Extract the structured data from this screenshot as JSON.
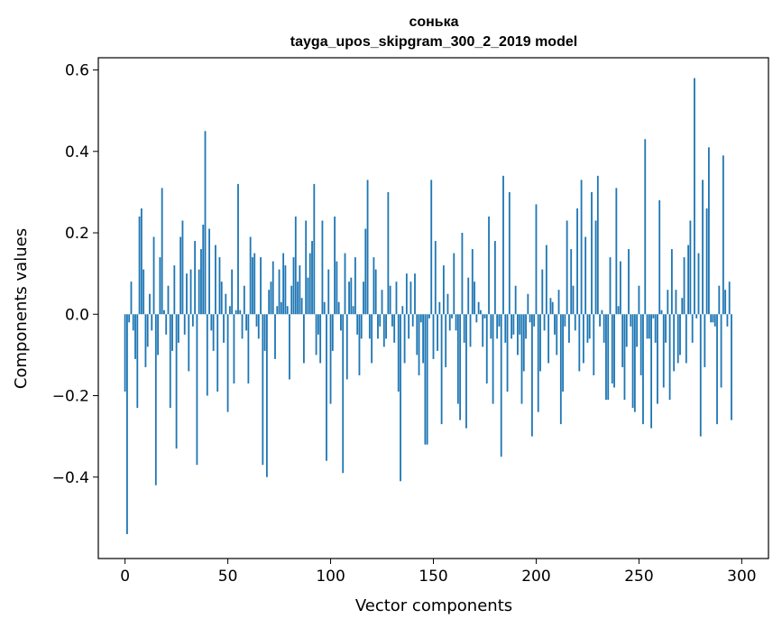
{
  "chart_data": {
    "type": "bar",
    "title": "сонька",
    "subtitle": "tayga_upos_skipgram_300_2_2019 model",
    "xlabel": "Vector components",
    "ylabel": "Components values",
    "xlim": [
      -13,
      313
    ],
    "ylim": [
      -0.6,
      0.63
    ],
    "xticks": [
      0,
      50,
      100,
      150,
      200,
      250,
      300
    ],
    "yticks": [
      -0.4,
      -0.2,
      0.0,
      0.2,
      0.4,
      0.6
    ],
    "ytick_labels": [
      "−0.4",
      "−0.2",
      "0.0",
      "0.2",
      "0.4",
      "0.6"
    ],
    "color": "#1f77b4",
    "values": [
      -0.19,
      -0.54,
      -0.02,
      0.08,
      -0.04,
      -0.11,
      -0.23,
      0.24,
      0.26,
      0.11,
      -0.13,
      -0.08,
      0.05,
      -0.04,
      0.19,
      -0.42,
      -0.1,
      0.14,
      0.31,
      0.01,
      -0.05,
      0.07,
      -0.23,
      -0.09,
      0.12,
      -0.33,
      -0.07,
      0.19,
      0.23,
      -0.05,
      0.1,
      -0.14,
      0.11,
      -0.03,
      0.18,
      -0.37,
      0.11,
      0.16,
      0.22,
      0.45,
      -0.2,
      0.21,
      -0.04,
      -0.09,
      0.17,
      -0.19,
      0.14,
      0.08,
      -0.07,
      0.05,
      -0.24,
      0.02,
      0.11,
      -0.17,
      0.01,
      0.32,
      0.01,
      -0.06,
      0.07,
      -0.04,
      -0.17,
      0.19,
      0.14,
      0.15,
      -0.03,
      -0.06,
      0.14,
      -0.37,
      -0.09,
      -0.4,
      0.06,
      0.08,
      0.13,
      -0.11,
      0.02,
      0.11,
      0.03,
      0.15,
      0.12,
      0.02,
      -0.16,
      0.07,
      0.14,
      0.24,
      0.08,
      0.12,
      0.04,
      -0.12,
      0.23,
      0.09,
      0.15,
      0.18,
      0.32,
      -0.1,
      -0.05,
      -0.12,
      0.23,
      0.03,
      -0.36,
      0.11,
      -0.22,
      -0.09,
      0.24,
      0.13,
      0.03,
      -0.04,
      -0.39,
      0.15,
      -0.16,
      0.08,
      0.09,
      0.02,
      0.14,
      -0.05,
      -0.15,
      -0.06,
      0.08,
      0.21,
      0.33,
      -0.06,
      -0.12,
      0.14,
      0.11,
      -0.06,
      -0.03,
      0.06,
      -0.08,
      -0.06,
      0.3,
      0.07,
      -0.03,
      -0.07,
      0.08,
      -0.19,
      -0.41,
      0.02,
      -0.12,
      0.1,
      -0.06,
      0.08,
      -0.03,
      0.1,
      -0.1,
      -0.15,
      -0.02,
      -0.12,
      -0.32,
      -0.32,
      -0.01,
      0.33,
      -0.11,
      0.18,
      -0.09,
      0.03,
      -0.27,
      0.12,
      -0.13,
      0.05,
      -0.04,
      -0.01,
      0.15,
      -0.04,
      -0.22,
      -0.26,
      0.2,
      -0.07,
      -0.28,
      0.09,
      -0.08,
      0.16,
      0.08,
      -0.02,
      0.03,
      0.01,
      -0.08,
      -0.01,
      -0.17,
      0.24,
      -0.06,
      -0.22,
      0.18,
      -0.06,
      -0.03,
      -0.35,
      0.34,
      -0.07,
      -0.19,
      0.3,
      -0.06,
      -0.05,
      0.07,
      -0.1,
      -0.05,
      -0.22,
      -0.14,
      -0.06,
      0.05,
      -0.02,
      -0.3,
      -0.03,
      0.27,
      -0.24,
      -0.14,
      0.11,
      -0.04,
      0.17,
      -0.12,
      0.04,
      0.03,
      -0.05,
      -0.1,
      0.06,
      -0.27,
      -0.19,
      -0.03,
      0.23,
      -0.07,
      0.16,
      0.07,
      -0.04,
      0.26,
      -0.14,
      0.33,
      -0.12,
      0.19,
      -0.07,
      -0.06,
      0.3,
      -0.15,
      0.23,
      0.34,
      -0.03,
      0.01,
      -0.07,
      -0.21,
      -0.21,
      0.14,
      -0.17,
      -0.18,
      0.31,
      0.02,
      0.13,
      -0.13,
      -0.21,
      -0.08,
      0.16,
      -0.03,
      -0.23,
      -0.24,
      -0.08,
      0.07,
      -0.15,
      -0.27,
      0.43,
      -0.06,
      -0.06,
      -0.28,
      -0.01,
      -0.07,
      -0.22,
      0.28,
      0.01,
      -0.18,
      -0.07,
      0.06,
      -0.21,
      0.16,
      -0.14,
      0.06,
      -0.12,
      -0.1,
      0.04,
      0.14,
      -0.12,
      0.17,
      0.23,
      -0.07,
      0.58,
      -0.01,
      0.15,
      -0.3,
      0.33,
      -0.13,
      0.26,
      0.41,
      -0.02,
      -0.02,
      -0.03,
      -0.27,
      0.07,
      -0.18,
      0.39,
      0.06,
      -0.03,
      0.08,
      -0.26
    ]
  }
}
